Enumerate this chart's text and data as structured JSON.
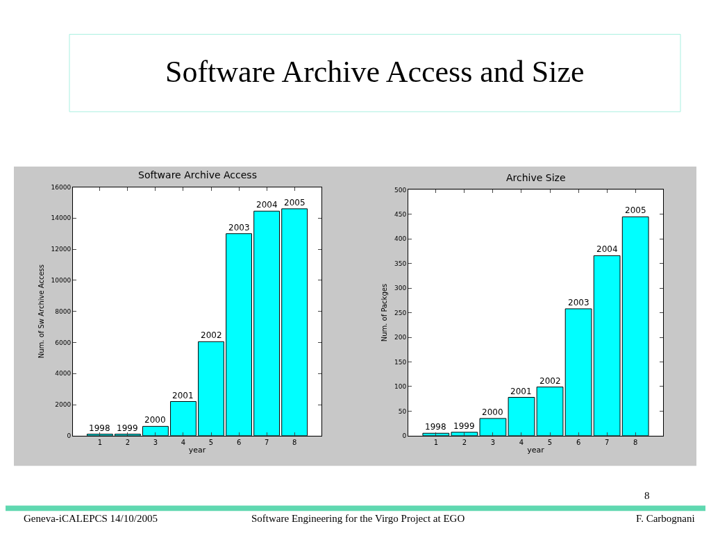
{
  "chart_data": [
    {
      "type": "bar",
      "title": "Software Archive Access",
      "xlabel": "year",
      "ylabel": "Num. of Sw Archive Access",
      "categories": [
        "1",
        "2",
        "3",
        "4",
        "5",
        "6",
        "7",
        "8"
      ],
      "values": [
        100,
        100,
        600,
        2200,
        6050,
        13000,
        14450,
        14600
      ],
      "color": "#00ffff",
      "ylim": [
        0,
        16000
      ],
      "yticks": [
        0,
        2000,
        4000,
        6000,
        8000,
        10000,
        12000,
        14000,
        16000
      ],
      "annotations": [
        "Software Archive Access and Size",
        "Geneva-iCALEPCS 14/10/2005",
        "Software Engineering for the Virgo Project at EGO",
        "F. Carbognani",
        "8",
        {
          "text": "1998",
          "x": "1",
          "y": 100
        },
        {
          "text": "1999",
          "x": "2",
          "y": 100
        },
        {
          "text": "2000",
          "x": "3",
          "y": 600
        },
        {
          "text": "2001",
          "x": "4",
          "y": 2200
        },
        {
          "text": "2002",
          "x": "5",
          "y": 6050
        },
        {
          "text": "2003",
          "x": "6",
          "y": 13000
        },
        {
          "text": "2004",
          "x": "7",
          "y": 14450
        },
        {
          "text": "2005",
          "x": "8",
          "y": 14600
        }
      ]
    },
    {
      "type": "bar",
      "title": "Archive Size",
      "xlabel": "year",
      "ylabel": "Num. of Packges",
      "categories": [
        "1",
        "2",
        "3",
        "4",
        "5",
        "6",
        "7",
        "8"
      ],
      "values": [
        5,
        7,
        35,
        78,
        99,
        258,
        366,
        445
      ],
      "color": "#00ffff",
      "ylim": [
        0,
        500
      ],
      "yticks": [
        0,
        50,
        100,
        150,
        200,
        250,
        300,
        350,
        400,
        450,
        500
      ],
      "annotations": [
        {
          "text": "1998",
          "x": "1",
          "y": 5
        },
        {
          "text": "1999",
          "x": "2",
          "y": 7
        },
        {
          "text": "2000",
          "x": "3",
          "y": 35
        },
        {
          "text": "2001",
          "x": "4",
          "y": 78
        },
        {
          "text": "2002",
          "x": "5",
          "y": 99
        },
        {
          "text": "2003",
          "x": "6",
          "y": 258
        },
        {
          "text": "2004",
          "x": "7",
          "y": 366
        },
        {
          "text": "2005",
          "x": "8",
          "y": 445
        }
      ]
    }
  ]
}
